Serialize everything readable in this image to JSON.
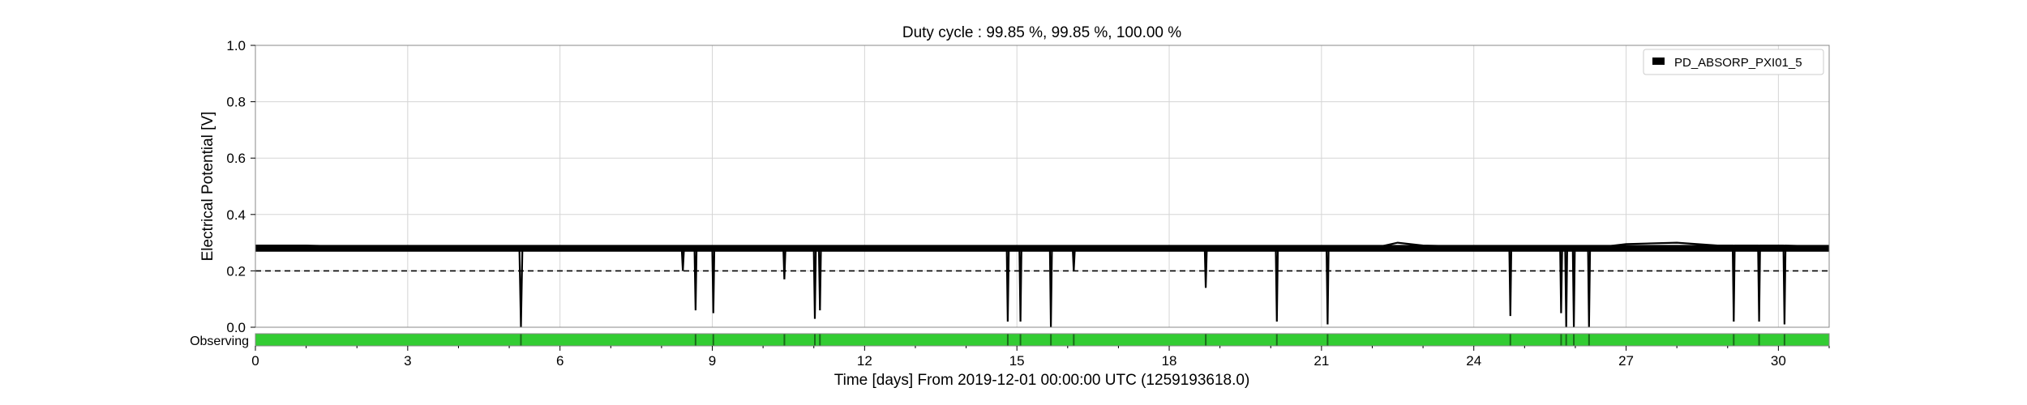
{
  "chart_data": {
    "type": "line",
    "title": "Duty cycle : 99.85 %, 99.85 %, 100.00 %",
    "xlabel": "Time [days] From 2019-12-01 00:00:00 UTC (1259193618.0)",
    "ylabel": "Electrical Potential [V]",
    "xlim": [
      0,
      31
    ],
    "ylim": [
      0.0,
      1.0
    ],
    "xticks": [
      0,
      3,
      6,
      9,
      12,
      15,
      18,
      21,
      24,
      27,
      30
    ],
    "xtick_labels": [
      "0",
      "3",
      "6",
      "9",
      "12",
      "15",
      "18",
      "21",
      "24",
      "27",
      "30"
    ],
    "yticks": [
      0.0,
      0.2,
      0.4,
      0.6,
      0.8,
      1.0
    ],
    "ytick_labels": [
      "0.0",
      "0.2",
      "0.4",
      "0.6",
      "0.8",
      "1.0"
    ],
    "grid": true,
    "legend_position": "top-right",
    "series": [
      {
        "name": "PD_ABSORP_PXI01_5",
        "color": "#000000",
        "baseline_level": 0.28,
        "points": [
          [
            0,
            0.29
          ],
          [
            1,
            0.29
          ],
          [
            2,
            0.285
          ],
          [
            3,
            0.285
          ],
          [
            4,
            0.282
          ],
          [
            5,
            0.28
          ],
          [
            5.2,
            0.28
          ],
          [
            5.23,
            0.0
          ],
          [
            5.26,
            0.28
          ],
          [
            6,
            0.278
          ],
          [
            7,
            0.276
          ],
          [
            8,
            0.275
          ],
          [
            8.4,
            0.275
          ],
          [
            8.42,
            0.2
          ],
          [
            8.44,
            0.275
          ],
          [
            8.65,
            0.275
          ],
          [
            8.67,
            0.06
          ],
          [
            8.69,
            0.275
          ],
          [
            9.0,
            0.275
          ],
          [
            9.02,
            0.05
          ],
          [
            9.04,
            0.275
          ],
          [
            10.4,
            0.275
          ],
          [
            10.42,
            0.17
          ],
          [
            10.44,
            0.275
          ],
          [
            11.0,
            0.275
          ],
          [
            11.02,
            0.03
          ],
          [
            11.04,
            0.275
          ],
          [
            11.1,
            0.275
          ],
          [
            11.12,
            0.06
          ],
          [
            11.14,
            0.275
          ],
          [
            12,
            0.275
          ],
          [
            13,
            0.274
          ],
          [
            14,
            0.275
          ],
          [
            14.8,
            0.275
          ],
          [
            14.82,
            0.02
          ],
          [
            14.84,
            0.275
          ],
          [
            15.05,
            0.275
          ],
          [
            15.07,
            0.02
          ],
          [
            15.09,
            0.275
          ],
          [
            15.65,
            0.275
          ],
          [
            15.67,
            0.0
          ],
          [
            15.69,
            0.275
          ],
          [
            16.1,
            0.275
          ],
          [
            16.12,
            0.2
          ],
          [
            16.14,
            0.275
          ],
          [
            17,
            0.276
          ],
          [
            18,
            0.277
          ],
          [
            18.7,
            0.277
          ],
          [
            18.72,
            0.14
          ],
          [
            18.74,
            0.277
          ],
          [
            19,
            0.276
          ],
          [
            20,
            0.275
          ],
          [
            20.1,
            0.275
          ],
          [
            20.12,
            0.02
          ],
          [
            20.14,
            0.275
          ],
          [
            21.1,
            0.275
          ],
          [
            21.12,
            0.01
          ],
          [
            21.14,
            0.275
          ],
          [
            22,
            0.28
          ],
          [
            22.5,
            0.3
          ],
          [
            23,
            0.29
          ],
          [
            24,
            0.285
          ],
          [
            24.7,
            0.285
          ],
          [
            24.72,
            0.04
          ],
          [
            24.74,
            0.285
          ],
          [
            25,
            0.28
          ],
          [
            25.5,
            0.28
          ],
          [
            25.7,
            0.28
          ],
          [
            25.72,
            0.05
          ],
          [
            25.74,
            0.28
          ],
          [
            25.8,
            0.28
          ],
          [
            25.82,
            0.0
          ],
          [
            25.84,
            0.28
          ],
          [
            25.95,
            0.28
          ],
          [
            25.97,
            0.0
          ],
          [
            25.99,
            0.28
          ],
          [
            26.25,
            0.28
          ],
          [
            26.27,
            0.0
          ],
          [
            26.29,
            0.28
          ],
          [
            27,
            0.295
          ],
          [
            28,
            0.3
          ],
          [
            28.8,
            0.29
          ],
          [
            29.1,
            0.29
          ],
          [
            29.12,
            0.02
          ],
          [
            29.14,
            0.29
          ],
          [
            29.6,
            0.29
          ],
          [
            29.62,
            0.02
          ],
          [
            29.64,
            0.29
          ],
          [
            30.1,
            0.29
          ],
          [
            30.12,
            0.01
          ],
          [
            30.14,
            0.29
          ],
          [
            31,
            0.285
          ]
        ]
      },
      {
        "type": "threshold",
        "value": 0.2,
        "style": "dashed",
        "color": "#000000"
      }
    ],
    "segments": {
      "label": "Observing",
      "color": "#33cc33",
      "range": [
        0,
        31
      ],
      "gaps": [
        5.23,
        8.67,
        9.02,
        10.42,
        11.02,
        11.12,
        14.82,
        15.07,
        15.67,
        16.12,
        18.72,
        20.12,
        21.12,
        24.72,
        25.72,
        25.82,
        25.97,
        26.27,
        29.12,
        29.62,
        30.12
      ]
    }
  }
}
